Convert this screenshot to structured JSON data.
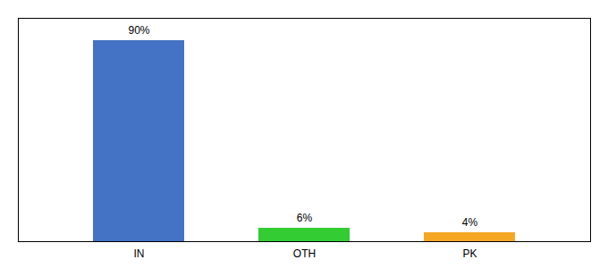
{
  "chart_data": {
    "type": "bar",
    "categories": [
      "IN",
      "OTH",
      "PK"
    ],
    "values": [
      90,
      6,
      4
    ],
    "value_labels": [
      "90%",
      "6%",
      "4%"
    ],
    "colors": [
      "#4472c4",
      "#33cc33",
      "#f5a623"
    ],
    "data_labels": true,
    "ylim": [
      0,
      100
    ],
    "tick_labels": "x",
    "grid": false
  }
}
